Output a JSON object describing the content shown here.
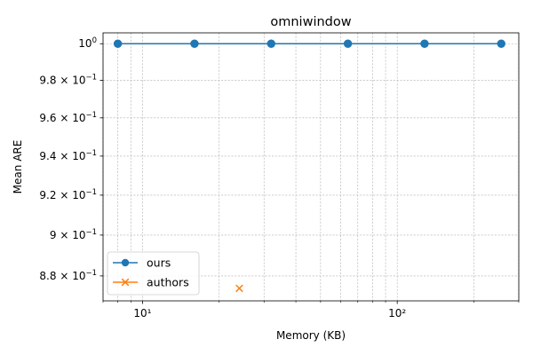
{
  "chart_data": {
    "type": "line",
    "title": "omniwindow",
    "xlabel": "Memory (KB)",
    "ylabel": "Mean ARE",
    "xscale": "log",
    "yscale": "log",
    "xlim": [
      7,
      300
    ],
    "ylim": [
      0.868,
      1.006
    ],
    "grid": true,
    "legend_position": "lower-left",
    "x_major_ticks": [
      {
        "value": 10,
        "label": "10¹"
      },
      {
        "value": 100,
        "label": "10²"
      }
    ],
    "x_minor_ticks": [
      7,
      8,
      9,
      20,
      30,
      40,
      50,
      60,
      70,
      80,
      90,
      200,
      300
    ],
    "y_ticks": [
      {
        "value": 1.0,
        "mantissa": "10",
        "exp": "0",
        "prefix": ""
      },
      {
        "value": 0.98,
        "mantissa": "10",
        "exp": "−1",
        "prefix": "9.8 × "
      },
      {
        "value": 0.96,
        "mantissa": "10",
        "exp": "−1",
        "prefix": "9.6 × "
      },
      {
        "value": 0.94,
        "mantissa": "10",
        "exp": "−1",
        "prefix": "9.4 × "
      },
      {
        "value": 0.92,
        "mantissa": "10",
        "exp": "−1",
        "prefix": "9.2 × "
      },
      {
        "value": 0.9,
        "mantissa": "10",
        "exp": "−1",
        "prefix": "9 × "
      },
      {
        "value": 0.88,
        "mantissa": "10",
        "exp": "−1",
        "prefix": "8.8 × "
      }
    ],
    "series": [
      {
        "name": "ours",
        "color": "#1f77b4",
        "marker": "circle",
        "line": true,
        "x": [
          8,
          16,
          32,
          64,
          128,
          256
        ],
        "y": [
          1.0,
          1.0,
          1.0,
          1.0,
          1.0,
          1.0
        ]
      },
      {
        "name": "authors",
        "color": "#ff7f0e",
        "marker": "x",
        "line": true,
        "x": [
          24
        ],
        "y": [
          0.874
        ]
      }
    ]
  }
}
